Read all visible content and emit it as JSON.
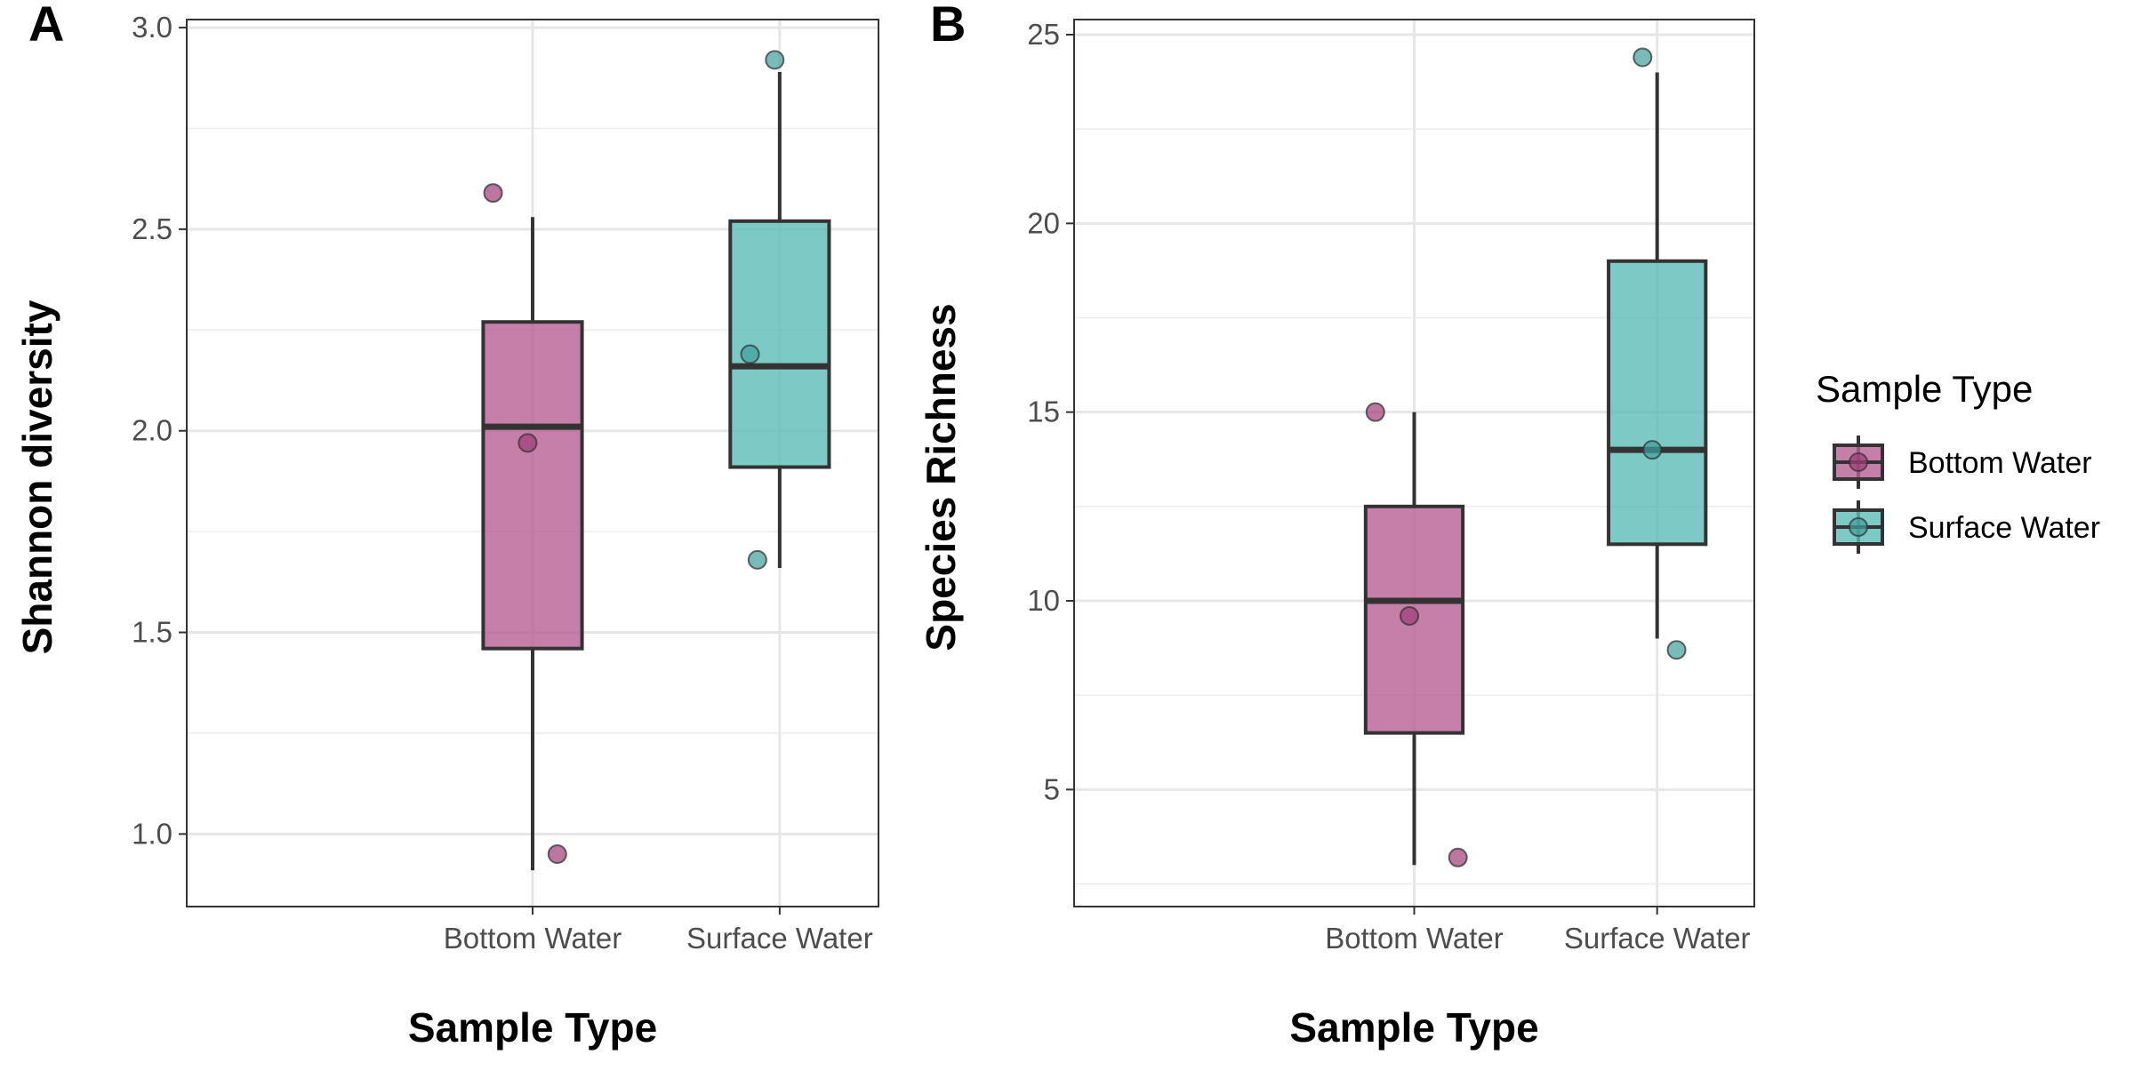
{
  "chart_data": [
    {
      "type": "box",
      "panel_tag": "A",
      "xlabel": "Sample Type",
      "ylabel": "Shannon diversity",
      "categories": [
        "Bottom Water",
        "Surface Water"
      ],
      "ylim": [
        0.82,
        3.02
      ],
      "yticks": [
        "1.0",
        "1.5",
        "2.0",
        "2.5",
        "3.0"
      ],
      "grid": true,
      "boxes": [
        {
          "category": "Bottom Water",
          "whisker_low": 0.91,
          "q1": 1.46,
          "median": 2.01,
          "q3": 2.27,
          "whisker_high": 2.53,
          "color": "#b65f94"
        },
        {
          "category": "Surface Water",
          "whisker_low": 1.66,
          "q1": 1.91,
          "median": 2.16,
          "q3": 2.52,
          "whisker_high": 2.89,
          "color": "#5bbbb8"
        }
      ],
      "points": [
        {
          "category": "Bottom Water",
          "jitter": -0.16,
          "y": 2.59
        },
        {
          "category": "Bottom Water",
          "jitter": -0.02,
          "y": 1.97
        },
        {
          "category": "Bottom Water",
          "jitter": 0.1,
          "y": 0.95
        },
        {
          "category": "Surface Water",
          "jitter": -0.12,
          "y": 2.19
        },
        {
          "category": "Surface Water",
          "jitter": -0.09,
          "y": 1.68
        },
        {
          "category": "Surface Water",
          "jitter": -0.02,
          "y": 2.92
        }
      ]
    },
    {
      "type": "box",
      "panel_tag": "B",
      "xlabel": "Sample Type",
      "ylabel": "Species Richness",
      "categories": [
        "Bottom Water",
        "Surface Water"
      ],
      "ylim": [
        1.9,
        25.4
      ],
      "yticks": [
        "5",
        "10",
        "15",
        "20",
        "25"
      ],
      "grid": true,
      "boxes": [
        {
          "category": "Bottom Water",
          "whisker_low": 3,
          "q1": 6.5,
          "median": 10,
          "q3": 12.5,
          "whisker_high": 15,
          "color": "#b65f94"
        },
        {
          "category": "Surface Water",
          "whisker_low": 9,
          "q1": 11.5,
          "median": 14,
          "q3": 19,
          "whisker_high": 24,
          "color": "#5bbbb8"
        }
      ],
      "points": [
        {
          "category": "Bottom Water",
          "jitter": -0.16,
          "y": 15
        },
        {
          "category": "Bottom Water",
          "jitter": -0.02,
          "y": 9.6
        },
        {
          "category": "Bottom Water",
          "jitter": 0.18,
          "y": 3.2
        },
        {
          "category": "Surface Water",
          "jitter": -0.06,
          "y": 24.4
        },
        {
          "category": "Surface Water",
          "jitter": -0.02,
          "y": 14
        },
        {
          "category": "Surface Water",
          "jitter": 0.08,
          "y": 8.7
        }
      ]
    }
  ],
  "legend": {
    "title": "Sample Type",
    "position": "right",
    "items": [
      {
        "label": "Bottom Water",
        "color": "#b65f94",
        "point_color": "#a03c78"
      },
      {
        "label": "Surface Water",
        "color": "#5bbbb8",
        "point_color": "#3f9e9b"
      }
    ]
  }
}
